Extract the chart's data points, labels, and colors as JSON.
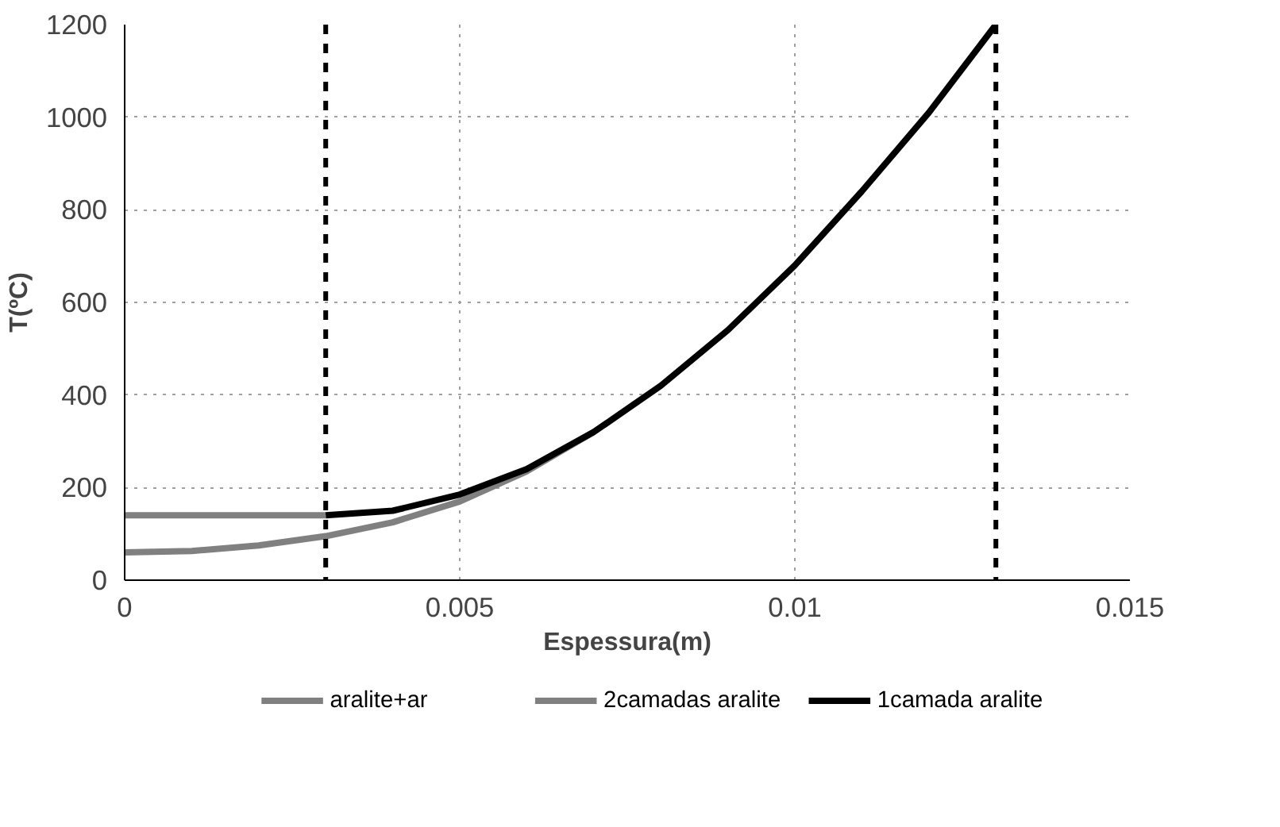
{
  "chart_data": {
    "type": "line",
    "xlabel": "Espessura(m)",
    "ylabel": "T(ºC)",
    "xlim": [
      0,
      0.015
    ],
    "xticks": [
      0,
      0.005,
      0.01,
      0.015
    ],
    "ylim": [
      0,
      1200
    ],
    "yticks": [
      0,
      200,
      400,
      600,
      800,
      1000,
      1200
    ],
    "grid": true,
    "legend": "bottom",
    "line_style": "solid",
    "series": [
      {
        "name": "aralite+ar",
        "color": "#808080",
        "x": [
          0,
          0.001,
          0.002,
          0.003,
          0.004,
          0.005,
          0.006,
          0.007
        ],
        "values": [
          60,
          63,
          75,
          95,
          125,
          170,
          235,
          320
        ]
      },
      {
        "name": "2camadas aralite",
        "color": "#808080",
        "x": [
          0,
          0.001,
          0.002,
          0.003
        ],
        "values": [
          140,
          140,
          140,
          140
        ]
      },
      {
        "name": "1camada aralite",
        "color": "#000000",
        "x": [
          0.003,
          0.004,
          0.005,
          0.006,
          0.007,
          0.008,
          0.009,
          0.01,
          0.011,
          0.012,
          0.013
        ],
        "values": [
          140,
          150,
          185,
          240,
          320,
          420,
          540,
          680,
          840,
          1010,
          1200
        ]
      }
    ],
    "ref_lines": [
      {
        "axis": "x",
        "value": 0.003,
        "color": "#000000",
        "line_style": "dashed"
      },
      {
        "axis": "x",
        "value": 0.013,
        "color": "#000000",
        "line_style": "dashed"
      }
    ]
  }
}
